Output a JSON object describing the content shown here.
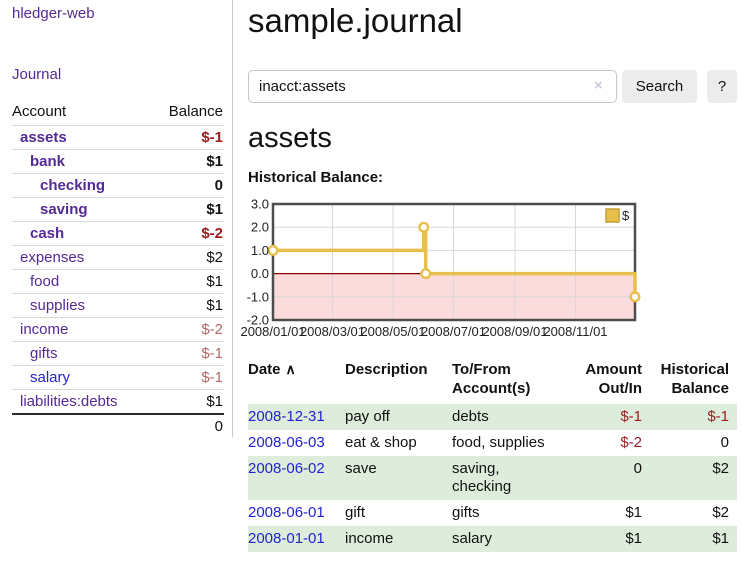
{
  "colors": {
    "link_purple": "#542a95",
    "link_blue": "#2323d4",
    "negative_dark": "#9b1b1e",
    "negative_dim": "#b26a6a",
    "row_stripe_green": "#ddecdb",
    "button_gray": "#ececec",
    "chart_line_gold": "#e8bf4a",
    "chart_marker_fill": "#ffffff",
    "chart_negative_pink": "#fbdbdb",
    "chart_zero_line": "#8b0000",
    "chart_gridline": "#d9d9d9",
    "chart_border": "#4d4d4d"
  },
  "app_title": "hledger-web",
  "nav": {
    "journal": "Journal"
  },
  "accounts_panel": {
    "col_account": "Account",
    "col_balance": "Balance",
    "rows": [
      {
        "name": "assets",
        "balance": "$-1",
        "indent": 1,
        "bold": true,
        "negative": true
      },
      {
        "name": "bank",
        "balance": "$1",
        "indent": 2,
        "bold": true,
        "negative": false
      },
      {
        "name": "checking",
        "balance": "0",
        "indent": 3,
        "bold": true,
        "negative": false
      },
      {
        "name": "saving",
        "balance": "$1",
        "indent": 3,
        "bold": true,
        "negative": false
      },
      {
        "name": "cash",
        "balance": "$-2",
        "indent": 2,
        "bold": true,
        "negative": true
      },
      {
        "name": "expenses",
        "balance": "$2",
        "indent": 1,
        "bold": false,
        "negative": false
      },
      {
        "name": "food",
        "balance": "$1",
        "indent": 2,
        "bold": false,
        "negative": false
      },
      {
        "name": "supplies",
        "balance": "$1",
        "indent": 2,
        "bold": false,
        "negative": false
      },
      {
        "name": "income",
        "balance": "$-2",
        "indent": 1,
        "bold": false,
        "negative": true,
        "dim": true
      },
      {
        "name": "gifts",
        "balance": "$-1",
        "indent": 2,
        "bold": false,
        "negative": true,
        "dim": true
      },
      {
        "name": "salary",
        "balance": "$-1",
        "indent": 2,
        "bold": false,
        "negative": true,
        "dim": true,
        "unvisited": true
      },
      {
        "name": "liabilities:debts",
        "balance": "$1",
        "indent": 1,
        "bold": false,
        "negative": false
      }
    ],
    "total": "0"
  },
  "header": {
    "title": "sample.journal"
  },
  "search": {
    "value": "inacct:assets",
    "clear": "×",
    "submit": "Search",
    "help": "?"
  },
  "register": {
    "heading": "assets",
    "table": {
      "headers": [
        {
          "label": "Date",
          "sort": "∧",
          "align": "left"
        },
        {
          "label": "Description",
          "align": "left"
        },
        {
          "label": "To/From\nAccount(s)",
          "align": "left"
        },
        {
          "label": "Amount\nOut/In",
          "align": "right"
        },
        {
          "label": "Historical\nBalance",
          "align": "right"
        }
      ],
      "rows": [
        {
          "date": "2008-12-31",
          "description": "pay off",
          "accounts": "debts",
          "amount": "$-1",
          "balance": "$-1",
          "amount_negative": true,
          "balance_negative": true,
          "shaded": true
        },
        {
          "date": "2008-06-03",
          "description": "eat & shop",
          "accounts": "food, supplies",
          "amount": "$-2",
          "balance": "0",
          "amount_negative": true,
          "balance_negative": false,
          "shaded": false
        },
        {
          "date": "2008-06-02",
          "description": "save",
          "accounts": "saving,\nchecking",
          "amount": "0",
          "balance": "$2",
          "amount_negative": false,
          "balance_negative": false,
          "shaded": true
        },
        {
          "date": "2008-06-01",
          "description": "gift",
          "accounts": "gifts",
          "amount": "$1",
          "balance": "$2",
          "amount_negative": false,
          "balance_negative": false,
          "shaded": false
        },
        {
          "date": "2008-01-01",
          "description": "income",
          "accounts": "salary",
          "amount": "$1",
          "balance": "$1",
          "amount_negative": false,
          "balance_negative": false,
          "shaded": true
        }
      ]
    }
  },
  "chart_data": {
    "type": "line",
    "title": "Historical Balance:",
    "step": true,
    "markers": true,
    "series": [
      {
        "name": "$",
        "points": [
          [
            "2008-01-01",
            1
          ],
          [
            "2008-06-01",
            2
          ],
          [
            "2008-06-03",
            0
          ],
          [
            "2008-12-31",
            -1
          ]
        ]
      }
    ],
    "x_domain": [
      "2008-01-01",
      "2008-12-31"
    ],
    "x_ticks": [
      "2008/01/01",
      "2008/03/01",
      "2008/05/01",
      "2008/07/01",
      "2008/09/01",
      "2008/11/01"
    ],
    "y_ticks": [
      "3.0",
      "2.0",
      "1.0",
      "0.0",
      "-1.0",
      "-2.0"
    ],
    "ylim": [
      -2,
      3
    ],
    "grid": true,
    "negative_region_shaded": true,
    "legend": {
      "label": "$",
      "position": "top-right"
    }
  }
}
